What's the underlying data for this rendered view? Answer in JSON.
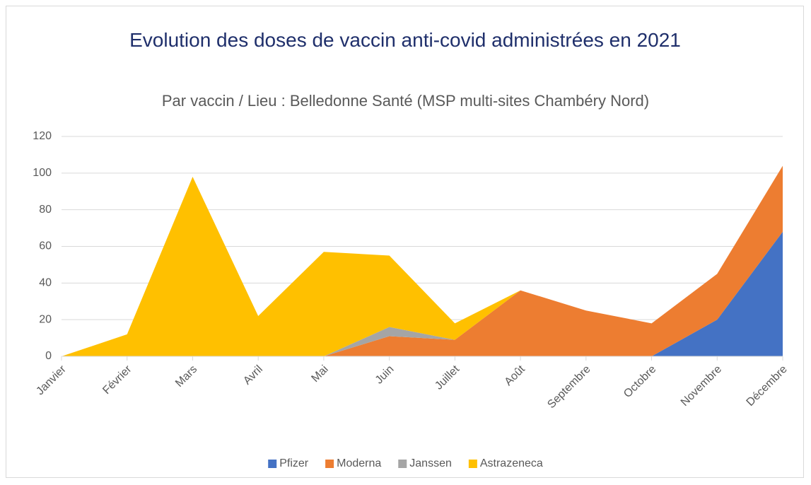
{
  "chart_data": {
    "type": "stacked_area",
    "title": "Evolution des doses de vaccin anti-covid administrées en 2021",
    "subtitle": "Par vaccin / Lieu : Belledonne Santé (MSP multi-sites Chambéry Nord)",
    "categories": [
      "Janvier",
      "Février",
      "Mars",
      "Avril",
      "Mai",
      "Juin",
      "Juillet",
      "Août",
      "Septembre",
      "Octobre",
      "Novembre",
      "Décembre"
    ],
    "series": [
      {
        "name": "Pfizer",
        "color": "#4472c4",
        "values": [
          0,
          0,
          0,
          0,
          0,
          0,
          0,
          0,
          0,
          0,
          20,
          68
        ]
      },
      {
        "name": "Moderna",
        "color": "#ed7d31",
        "values": [
          0,
          0,
          0,
          0,
          0,
          11,
          9,
          36,
          25,
          18,
          25,
          36
        ]
      },
      {
        "name": "Janssen",
        "color": "#a5a5a5",
        "values": [
          0,
          0,
          0,
          0,
          0,
          5,
          0,
          0,
          0,
          0,
          0,
          0
        ]
      },
      {
        "name": "Astrazeneca",
        "color": "#ffc000",
        "values": [
          0,
          12,
          98,
          22,
          57,
          39,
          9,
          0,
          0,
          0,
          0,
          0
        ]
      }
    ],
    "ylim": [
      0,
      120
    ],
    "yticks": [
      0,
      20,
      40,
      60,
      80,
      100,
      120
    ],
    "grid": true,
    "legend": "bottom"
  }
}
